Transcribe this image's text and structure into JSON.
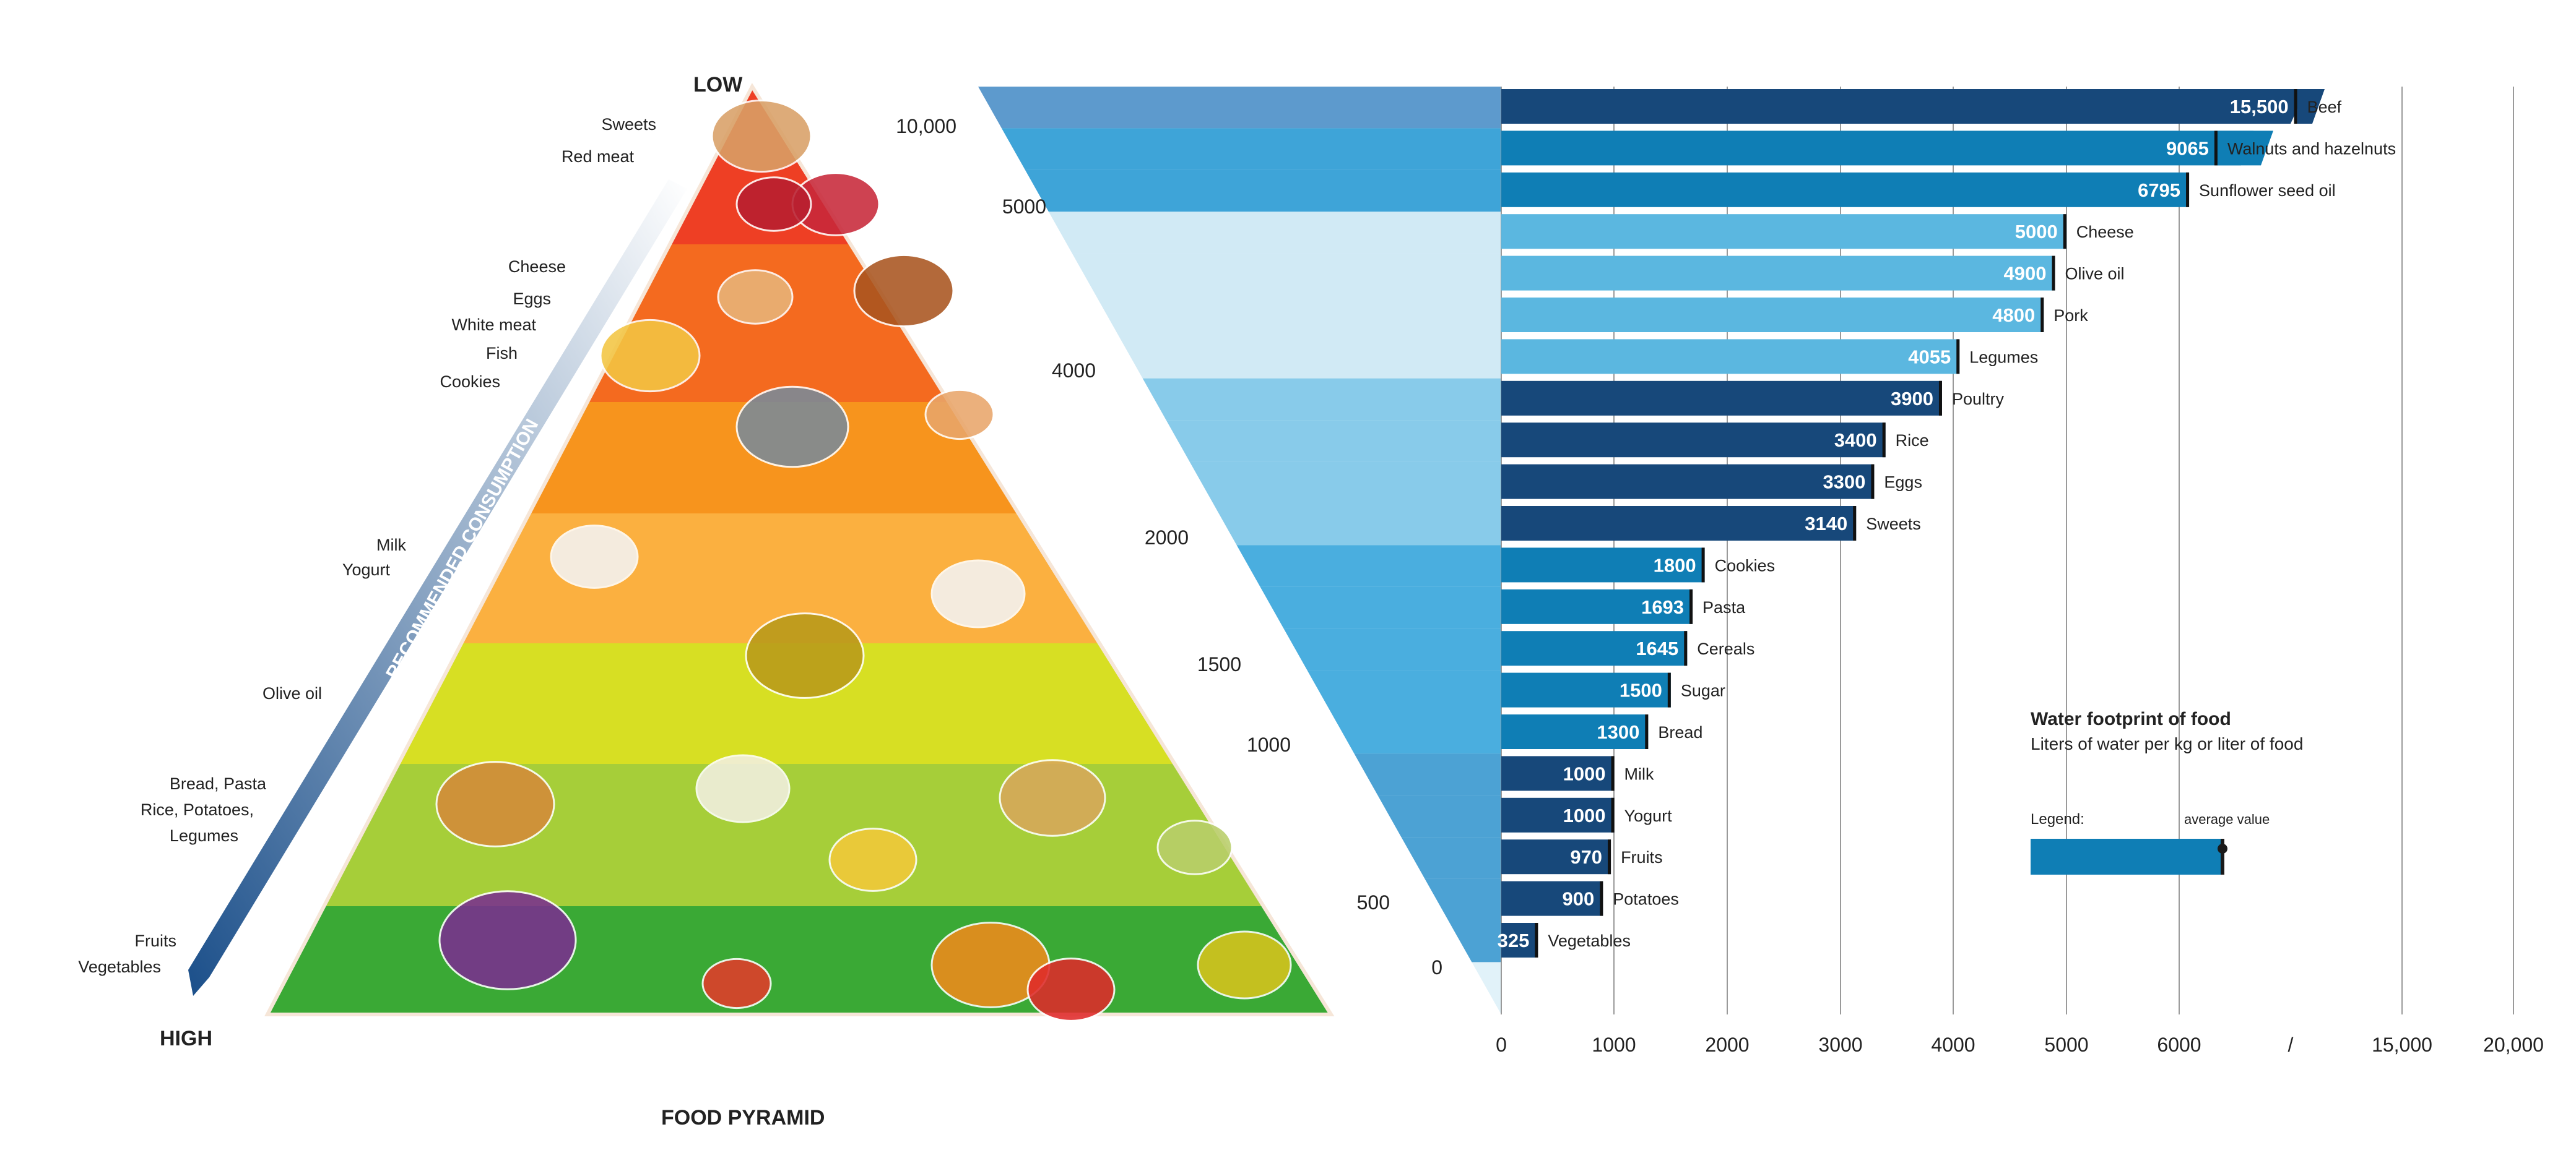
{
  "pyramid": {
    "title": "FOOD PYRAMID",
    "low_label": "LOW",
    "high_label": "HIGH",
    "axis_label": "RECOMMENDED CONSUMPTION",
    "levels": [
      {
        "name": "sweets-meat",
        "color": "#ee3f24",
        "labels": [
          "Sweets",
          "Red meat"
        ]
      },
      {
        "name": "protein",
        "color": "#f46a1f",
        "labels": [
          "Cheese",
          "Eggs",
          "White meat",
          "Fish",
          "Cookies"
        ]
      },
      {
        "name": "dairy",
        "color": "#f7941d",
        "labels": [
          "Milk",
          "Yogurt"
        ]
      },
      {
        "name": "oil",
        "color": "#fbb040",
        "labels": [
          "Olive oil"
        ]
      },
      {
        "name": "grains",
        "color": "#d7df23",
        "labels": [
          "Bread, Pasta",
          "Rice, Potatoes,",
          "Legumes"
        ]
      },
      {
        "name": "grains-2",
        "color": "#a6ce39",
        "labels": []
      },
      {
        "name": "produce",
        "color": "#3aa935",
        "labels": [
          "Fruits",
          "Vegetables"
        ]
      }
    ],
    "funnel_labels": [
      "10,000",
      "5000",
      "4000",
      "2000",
      "1500",
      "1000",
      "500",
      "0"
    ]
  },
  "chart_data": {
    "type": "bar",
    "orientation": "horizontal",
    "title": "Water footprint of food",
    "subtitle": "Liters of water per kg or liter of food",
    "legend_label": "Legend:",
    "legend_marker_label": "average value",
    "xlim": [
      0,
      20000
    ],
    "x_ticks": [
      "0",
      "1000",
      "2000",
      "3000",
      "4000",
      "5000",
      "6000",
      "/",
      "15,000",
      "20,000"
    ],
    "axis_break": true,
    "categories": [
      "Beef",
      "Walnuts and hazelnuts",
      "Sunflower seed oil",
      "Cheese",
      "Olive oil",
      "Pork",
      "Legumes",
      "Poultry",
      "Rice",
      "Eggs",
      "Sweets",
      "Cookies",
      "Pasta",
      "Cereals",
      "Sugar",
      "Bread",
      "Milk",
      "Yogurt",
      "Fruits",
      "Potatoes",
      "Vegetables"
    ],
    "values": [
      15500,
      9065,
      6795,
      5000,
      4900,
      4800,
      4055,
      3900,
      3400,
      3300,
      3140,
      1800,
      1693,
      1645,
      1500,
      1300,
      1000,
      1000,
      970,
      900,
      325
    ],
    "value_labels": [
      "15,500",
      "9065",
      "6795",
      "5000",
      "4900",
      "4800",
      "4055",
      "3900",
      "3400",
      "3300",
      "3140",
      "1800",
      "1693",
      "1645",
      "1500",
      "1300",
      "1000",
      "1000",
      "970",
      "900",
      "325"
    ],
    "colors": {
      "dark": "#17487a",
      "mid": "#0f7eb5",
      "light": "#5bb7e0",
      "band_light": "#cfe9f4",
      "band_mid": "#6cc1e6",
      "legend_bar": "#0f7eb5"
    }
  }
}
